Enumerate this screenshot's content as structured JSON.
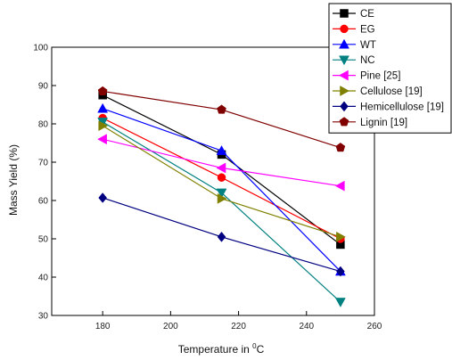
{
  "chart_data": {
    "type": "line",
    "xlabel": "Temperature in ",
    "xlabel_sup": "0",
    "xlabel_suffix": "C",
    "ylabel": "Mass Yield (%)",
    "xlim": [
      165,
      260
    ],
    "ylim": [
      30,
      100
    ],
    "xticks": [
      180,
      200,
      220,
      240,
      260
    ],
    "yticks": [
      30,
      40,
      50,
      60,
      70,
      80,
      90,
      100
    ],
    "grid": false,
    "legend_position": "top-right",
    "x": [
      180,
      215,
      250
    ],
    "series": [
      {
        "name": "CE",
        "values": [
          87.5,
          72,
          48.5
        ],
        "color": "#000000",
        "marker": "square"
      },
      {
        "name": "EG",
        "values": [
          81.5,
          66,
          50
        ],
        "color": "#ff0000",
        "marker": "circle"
      },
      {
        "name": "WT",
        "values": [
          84,
          73,
          41.5
        ],
        "color": "#0000ff",
        "marker": "triangle-up"
      },
      {
        "name": "NC",
        "values": [
          80.5,
          62,
          33.5
        ],
        "color": "#008080",
        "marker": "triangle-down"
      },
      {
        "name": "Pine [25]",
        "values": [
          76,
          68.5,
          63.8
        ],
        "color": "#ff00ff",
        "marker": "triangle-left"
      },
      {
        "name": "Cellulose [19]",
        "values": [
          79.5,
          60.5,
          50.5
        ],
        "color": "#808000",
        "marker": "triangle-right"
      },
      {
        "name": "Hemicellulose [19]",
        "values": [
          60.7,
          50.5,
          41.5
        ],
        "color": "#000080",
        "marker": "diamond"
      },
      {
        "name": "Lignin [19]",
        "values": [
          88.5,
          83.7,
          73.8
        ],
        "color": "#800000",
        "marker": "pentagon"
      }
    ]
  }
}
